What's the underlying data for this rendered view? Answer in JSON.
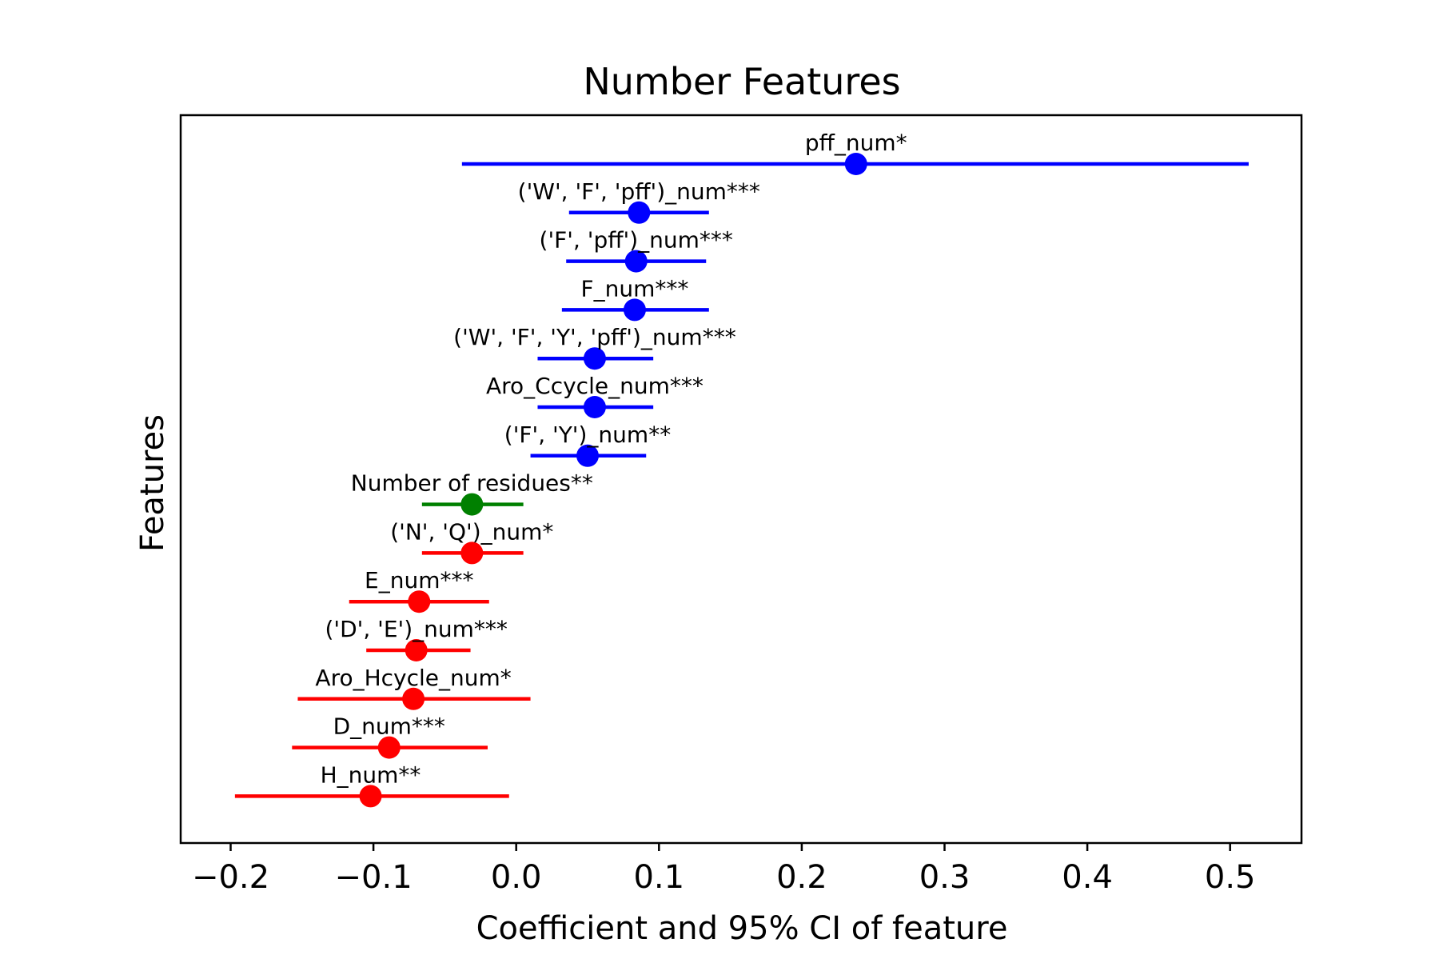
{
  "chart_data": {
    "type": "scatter",
    "title": "Number Features",
    "xlabel": "Coefficient and 95% CI of feature",
    "ylabel": "Features",
    "xlim": [
      -0.235,
      0.55
    ],
    "xticks": [
      -0.2,
      -0.1,
      0.0,
      0.1,
      0.2,
      0.3,
      0.4,
      0.5
    ],
    "xtick_labels": [
      "−0.2",
      "−0.1",
      "0.0",
      "0.1",
      "0.2",
      "0.3",
      "0.4",
      "0.5"
    ],
    "grid": false,
    "points": [
      {
        "label": "pff_num*",
        "coef": 0.238,
        "ci_low": -0.038,
        "ci_high": 0.513,
        "color": "#0000ff"
      },
      {
        "label": "('W', 'F', 'pff')_num***",
        "coef": 0.086,
        "ci_low": 0.037,
        "ci_high": 0.135,
        "color": "#0000ff"
      },
      {
        "label": "('F', 'pff')_num***",
        "coef": 0.084,
        "ci_low": 0.035,
        "ci_high": 0.133,
        "color": "#0000ff"
      },
      {
        "label": "F_num***",
        "coef": 0.083,
        "ci_low": 0.032,
        "ci_high": 0.135,
        "color": "#0000ff"
      },
      {
        "label": "('W', 'F', 'Y', 'pff')_num***",
        "coef": 0.055,
        "ci_low": 0.015,
        "ci_high": 0.096,
        "color": "#0000ff"
      },
      {
        "label": "Aro_Ccycle_num***",
        "coef": 0.055,
        "ci_low": 0.015,
        "ci_high": 0.096,
        "color": "#0000ff"
      },
      {
        "label": "('F', 'Y')_num**",
        "coef": 0.05,
        "ci_low": 0.01,
        "ci_high": 0.091,
        "color": "#0000ff"
      },
      {
        "label": "Number of residues**",
        "coef": -0.031,
        "ci_low": -0.066,
        "ci_high": 0.005,
        "color": "#008000"
      },
      {
        "label": "('N', 'Q')_num*",
        "coef": -0.031,
        "ci_low": -0.066,
        "ci_high": 0.005,
        "color": "#ff0000"
      },
      {
        "label": "E_num***",
        "coef": -0.068,
        "ci_low": -0.117,
        "ci_high": -0.019,
        "color": "#ff0000"
      },
      {
        "label": "('D', 'E')_num***",
        "coef": -0.07,
        "ci_low": -0.105,
        "ci_high": -0.032,
        "color": "#ff0000"
      },
      {
        "label": "Aro_Hcycle_num*",
        "coef": -0.072,
        "ci_low": -0.153,
        "ci_high": 0.01,
        "color": "#ff0000"
      },
      {
        "label": "D_num***",
        "coef": -0.089,
        "ci_low": -0.157,
        "ci_high": -0.02,
        "color": "#ff0000"
      },
      {
        "label": "H_num**",
        "coef": -0.102,
        "ci_low": -0.197,
        "ci_high": -0.005,
        "color": "#ff0000"
      }
    ]
  }
}
